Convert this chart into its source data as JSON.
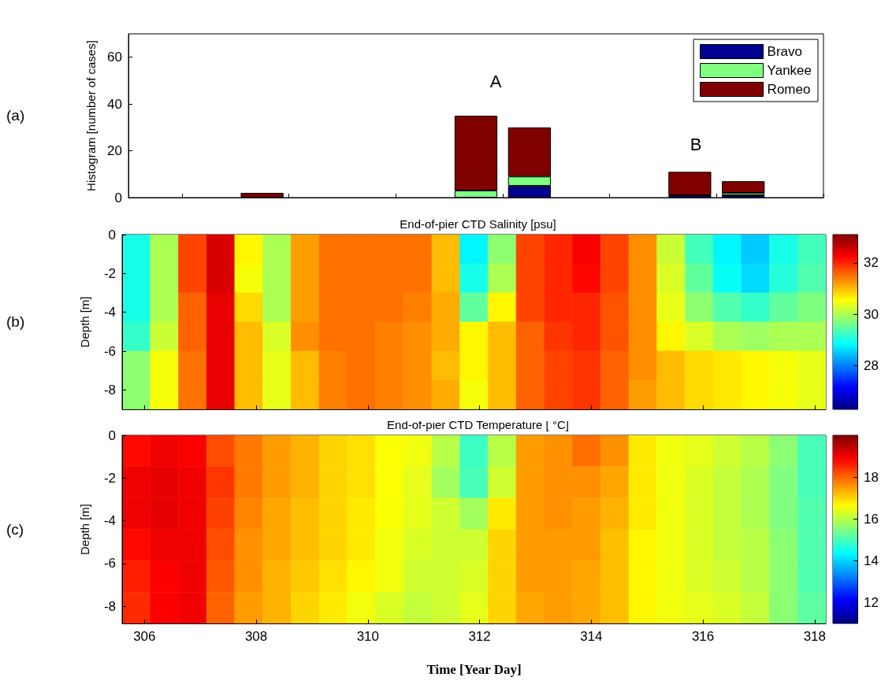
{
  "chart_data": [
    {
      "type": "bar",
      "stacked": true,
      "ylabel": "Histogram [number of cases]",
      "annotations": [
        "(a)",
        "A",
        "B"
      ],
      "categories": [
        null,
        null,
        null,
        null,
        null,
        null,
        null,
        null,
        null,
        null,
        null,
        null,
        null
      ],
      "series": [
        {
          "name": "Bravo",
          "color": "#000090",
          "values": [
            0,
            0,
            0,
            0,
            0,
            0,
            0,
            5,
            0,
            0,
            1,
            1,
            0
          ]
        },
        {
          "name": "Yankee",
          "color": "#80ff80",
          "values": [
            0,
            0,
            0,
            0,
            0,
            0,
            3,
            4,
            0,
            0,
            0,
            1,
            0
          ]
        },
        {
          "name": "Romeo",
          "color": "#800000",
          "values": [
            0,
            0,
            2,
            0,
            0,
            0,
            32,
            21,
            0,
            0,
            10,
            5,
            0
          ]
        }
      ],
      "ylim": [
        0,
        70
      ],
      "yticks": [
        0,
        20,
        40,
        60
      ],
      "legend": "top right",
      "tick_labels": "y"
    },
    {
      "type": "heatmap",
      "title": "End-of-pier CTD Salinity [psu]",
      "ylabel": "Depth [m]",
      "annotations": [
        "(b)"
      ],
      "x": [
        305.852,
        306.356,
        306.86,
        307.364,
        307.868,
        308.372,
        308.876,
        309.38,
        309.884,
        310.388,
        310.892,
        311.396,
        311.9,
        312.404,
        312.908,
        313.412,
        313.916,
        314.42,
        314.924,
        315.428,
        315.932,
        316.436,
        316.94,
        317.444,
        317.948
      ],
      "cells": [
        [
          29.0,
          30.0,
          31.8,
          32.5,
          30.6,
          30.0,
          31.2,
          31.5,
          31.5,
          31.5,
          31.5,
          31.0,
          28.8,
          29.8,
          31.8,
          32.0,
          32.3,
          31.8,
          31.3,
          30.2,
          29.3,
          28.8,
          28.5,
          29.0,
          29.3
        ],
        [
          29.0,
          30.0,
          31.8,
          32.5,
          30.5,
          30.0,
          31.2,
          31.5,
          31.5,
          31.5,
          31.5,
          31.0,
          29.0,
          30.0,
          31.8,
          32.0,
          32.2,
          31.8,
          31.3,
          30.3,
          29.5,
          28.9,
          28.6,
          29.1,
          29.4
        ],
        [
          29.0,
          30.0,
          31.6,
          32.4,
          30.8,
          30.0,
          31.2,
          31.5,
          31.5,
          31.5,
          31.4,
          31.1,
          29.5,
          30.6,
          31.8,
          32.0,
          32.0,
          31.7,
          31.3,
          30.4,
          29.8,
          29.4,
          29.2,
          29.5,
          29.7
        ],
        [
          29.2,
          30.2,
          31.6,
          32.4,
          31.0,
          30.3,
          31.3,
          31.5,
          31.5,
          31.4,
          31.3,
          31.1,
          30.6,
          31.0,
          31.6,
          31.9,
          32.0,
          31.7,
          31.3,
          30.6,
          30.3,
          30.0,
          29.9,
          30.0,
          30.0
        ],
        [
          29.8,
          30.5,
          31.5,
          32.4,
          31.0,
          30.4,
          31.0,
          31.4,
          31.5,
          31.4,
          31.3,
          31.0,
          30.6,
          31.0,
          31.6,
          31.8,
          31.9,
          31.6,
          31.3,
          31.0,
          30.8,
          30.7,
          30.6,
          30.5,
          30.4
        ],
        [
          29.8,
          30.5,
          31.5,
          32.4,
          31.0,
          30.4,
          31.0,
          31.4,
          31.5,
          31.4,
          31.3,
          31.1,
          30.5,
          31.0,
          31.6,
          31.8,
          31.9,
          31.6,
          31.2,
          31.0,
          30.8,
          30.7,
          30.6,
          30.5,
          30.4
        ]
      ],
      "xlim": [
        305.6,
        318.2
      ],
      "xticks": [
        {
          "value": 306,
          "label": null
        },
        {
          "value": 308,
          "label": null
        },
        {
          "value": 310,
          "label": null
        },
        {
          "value": 312,
          "label": null
        },
        {
          "value": 314,
          "label": null
        },
        {
          "value": 316,
          "label": null
        },
        {
          "value": 318,
          "label": null
        }
      ],
      "ylim": [
        -9,
        0
      ],
      "yticks": [
        0,
        -2,
        -4,
        -6,
        -8
      ],
      "clim": [
        26.3,
        33.1
      ],
      "cticks": [
        28,
        30,
        32
      ],
      "tick_labels": "y"
    },
    {
      "type": "heatmap",
      "title": "End-of-pier CTD Temperature [ °C]",
      "xlabel": "Time [Year Day]",
      "ylabel": "Depth [m]",
      "annotations": [
        "(c)"
      ],
      "x": [
        305.852,
        306.356,
        306.86,
        307.364,
        307.868,
        308.372,
        308.876,
        309.38,
        309.884,
        310.388,
        310.892,
        311.396,
        311.9,
        312.404,
        312.908,
        313.412,
        313.916,
        314.42,
        314.924,
        315.428,
        315.932,
        316.436,
        316.94,
        317.444,
        317.948
      ],
      "cells": [
        [
          18.8,
          19,
          18.9,
          18.2,
          17.8,
          17.5,
          17.3,
          17.0,
          16.9,
          16.6,
          16.5,
          16.0,
          14.9,
          16.0,
          17.5,
          17.6,
          17.9,
          17.6,
          16.8,
          16.5,
          16.4,
          16.2,
          16.0,
          15.6,
          15.0
        ],
        [
          19,
          19.1,
          19,
          18.4,
          17.8,
          17.5,
          17.3,
          17.0,
          16.9,
          16.6,
          16.4,
          15.8,
          15.0,
          16.2,
          17.5,
          17.6,
          17.6,
          17.4,
          16.8,
          16.5,
          16.3,
          16.1,
          15.9,
          15.5,
          15.0
        ],
        [
          19,
          19.1,
          19,
          18.3,
          17.7,
          17.4,
          17.2,
          17.0,
          16.8,
          16.6,
          16.4,
          16.2,
          15.8,
          16.8,
          17.5,
          17.6,
          17.5,
          17.3,
          16.8,
          16.5,
          16.3,
          16.1,
          15.9,
          15.5,
          15.1
        ],
        [
          18.8,
          19,
          19,
          18.2,
          17.6,
          17.4,
          17.2,
          17.0,
          16.8,
          16.5,
          16.3,
          16.2,
          16.2,
          17.0,
          17.5,
          17.5,
          17.5,
          17.2,
          16.7,
          16.5,
          16.3,
          16.1,
          16.0,
          15.6,
          15.1
        ],
        [
          18.6,
          18.9,
          19,
          18.1,
          17.6,
          17.3,
          17.1,
          16.9,
          16.7,
          16.5,
          16.2,
          16.2,
          16.3,
          17.0,
          17.5,
          17.5,
          17.4,
          17.2,
          16.7,
          16.5,
          16.3,
          16.2,
          16.0,
          15.6,
          15.1
        ],
        [
          18.5,
          18.9,
          19,
          18,
          17.5,
          17.3,
          17.0,
          16.8,
          16.5,
          16.3,
          16.1,
          16.2,
          16.4,
          17.0,
          17.4,
          17.5,
          17.4,
          17.2,
          16.7,
          16.5,
          16.4,
          16.3,
          16.1,
          15.6,
          15.2
        ]
      ],
      "xlim": [
        305.6,
        318.2
      ],
      "xticks": [
        306,
        308,
        310,
        312,
        314,
        316,
        318
      ],
      "ylim": [
        -8.8,
        0
      ],
      "yticks": [
        0,
        -2,
        -4,
        -6,
        -8
      ],
      "clim": [
        11,
        20
      ],
      "cticks": [
        12,
        14,
        16,
        18
      ]
    }
  ]
}
